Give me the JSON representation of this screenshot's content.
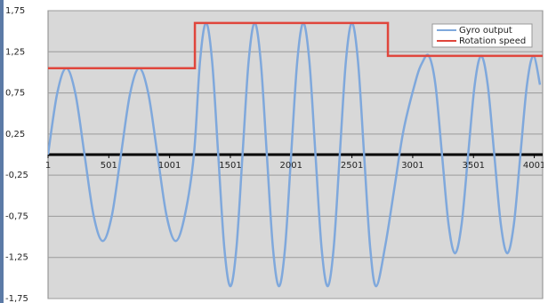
{
  "chart_data": {
    "type": "line",
    "series": [
      {
        "name": "Gyro output",
        "color": "#7fa8dc",
        "smooth": true,
        "x": [
          1,
          76,
          151,
          226,
          301,
          376,
          451,
          526,
          601,
          676,
          751,
          826,
          901,
          976,
          1051,
          1126,
          1201,
          1251,
          1301,
          1351,
          1401,
          1451,
          1501,
          1551,
          1601,
          1651,
          1701,
          1751,
          1801,
          1851,
          1901,
          1951,
          2001,
          2051,
          2101,
          2151,
          2201,
          2251,
          2301,
          2351,
          2401,
          2451,
          2501,
          2551,
          2601,
          2651,
          2701,
          2776,
          2851,
          2926,
          3026,
          3080,
          3134,
          3188,
          3242,
          3296,
          3349,
          3403,
          3457,
          3511,
          3564,
          3618,
          3672,
          3726,
          3779,
          3833,
          3887,
          3941,
          3994,
          4048
        ],
        "values": [
          0,
          0.742,
          1.05,
          0.742,
          0,
          -0.742,
          -1.05,
          -0.742,
          0,
          0.742,
          1.05,
          0.742,
          0,
          -0.742,
          -1.05,
          -0.742,
          0,
          1.131,
          1.6,
          1.131,
          0,
          -1.131,
          -1.6,
          -1.131,
          0,
          1.131,
          1.6,
          1.131,
          0,
          -1.131,
          -1.6,
          -1.131,
          0,
          1.131,
          1.6,
          1.131,
          0,
          -1.131,
          -1.6,
          -1.131,
          0,
          1.131,
          1.6,
          1.131,
          0,
          -1.131,
          -1.6,
          -1.1,
          -0.4,
          0.3,
          0.9,
          1.12,
          1.2,
          0.849,
          0,
          -0.849,
          -1.2,
          -0.849,
          0,
          0.849,
          1.2,
          0.849,
          0,
          -0.849,
          -1.2,
          -0.849,
          0,
          0.849,
          1.2,
          0.849
        ]
      },
      {
        "name": "Rotation speed",
        "color": "#e0463c",
        "x": [
          1,
          1209,
          1209,
          2797,
          2797,
          4070
        ],
        "values": [
          1.05,
          1.05,
          1.6,
          1.6,
          1.2,
          1.2
        ]
      }
    ],
    "xlim": [
      1,
      4070
    ],
    "xticks": [
      1,
      501,
      1001,
      1501,
      2001,
      2501,
      3001,
      3501,
      4001
    ],
    "ylim": [
      -1.75,
      1.75
    ],
    "yticks": [
      {
        "value": -1.75,
        "label": "-1,75"
      },
      {
        "value": -1.25,
        "label": "-1,25"
      },
      {
        "value": -0.75,
        "label": "-0,75"
      },
      {
        "value": -0.25,
        "label": "-0,25"
      },
      {
        "value": 0.25,
        "label": "0,25"
      },
      {
        "value": 0.75,
        "label": "0,75"
      },
      {
        "value": 1.25,
        "label": "1,25"
      },
      {
        "value": 1.75,
        "label": "1,75"
      }
    ],
    "grid": true,
    "legend": "top-right"
  }
}
